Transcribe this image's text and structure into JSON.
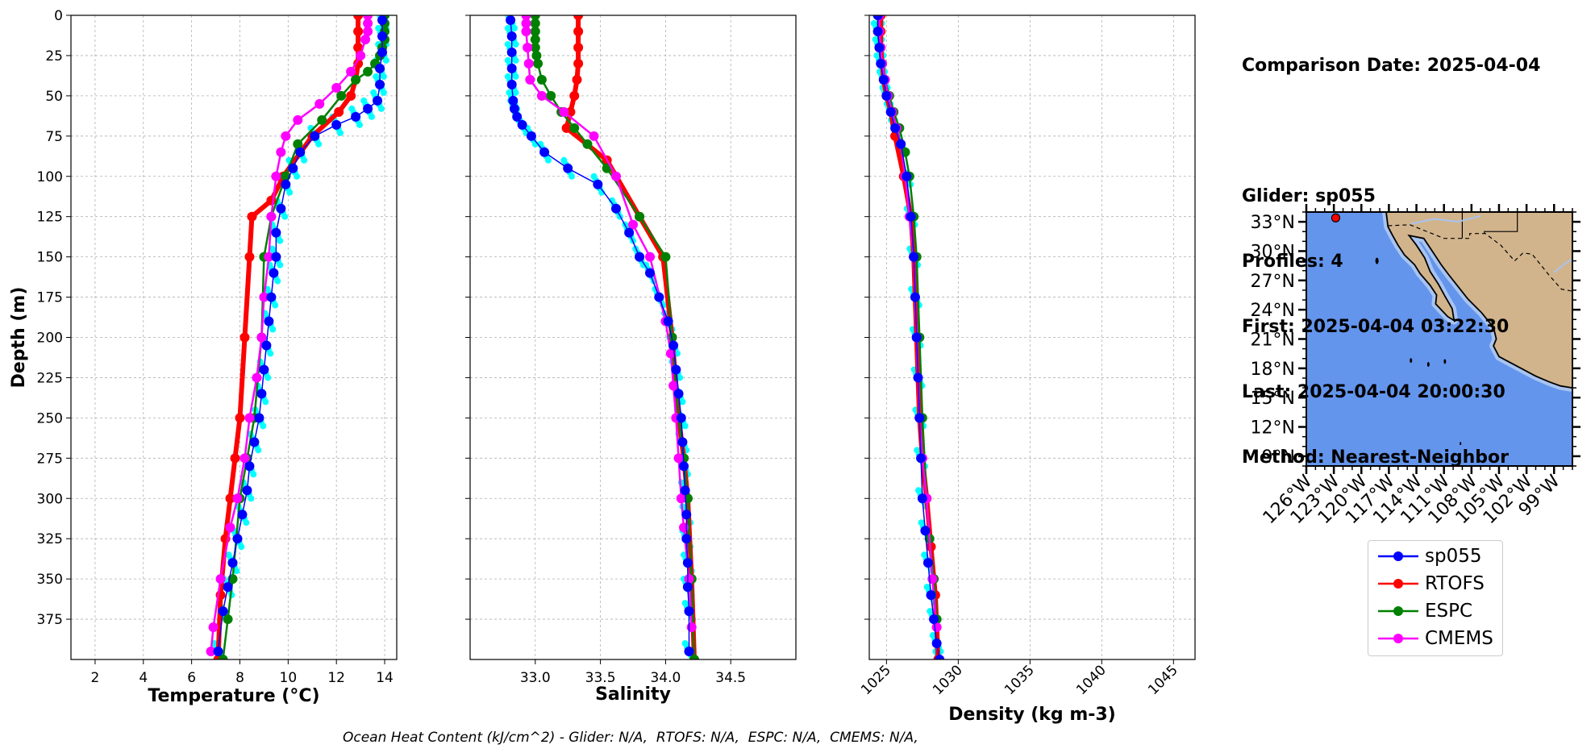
{
  "info": {
    "date_line": "Comparison Date: 2025-04-04",
    "glider_line": "Glider: sp055",
    "profiles_line": "Profiles: 4",
    "first_line": "First: 2025-04-04 03:22:30",
    "last_line": "Last: 2025-04-04 20:00:30",
    "method_line": "Method: Nearest-Neighbor"
  },
  "footer": "Ocean Heat Content (kJ/cm^2) - Glider: N/A,  RTOFS: N/A,  ESPC: N/A,  CMEMS: N/A,",
  "colors": {
    "glider": "#0000ff",
    "glider_raw": "#00ffff",
    "rtofs": "#ff0000",
    "espc": "#008000",
    "cmems": "#ff00ff",
    "ocean": "#6495ed",
    "shelf": "#a8c4f0",
    "land": "#d2b48c"
  },
  "legend": [
    {
      "key": "glider",
      "label": "sp055"
    },
    {
      "key": "rtofs",
      "label": "RTOFS"
    },
    {
      "key": "espc",
      "label": "ESPC"
    },
    {
      "key": "cmems",
      "label": "CMEMS"
    }
  ],
  "chart_data": [
    {
      "type": "line",
      "xlabel": "Temperature (°C)",
      "ylabel": "Depth (m)",
      "xlim": [
        1,
        14.5
      ],
      "ylim": [
        400,
        0
      ],
      "xticks": [
        2,
        4,
        6,
        8,
        10,
        12,
        14
      ],
      "yticks": [
        0,
        25,
        50,
        75,
        100,
        125,
        150,
        175,
        200,
        225,
        250,
        275,
        300,
        325,
        350,
        375
      ],
      "grid": true,
      "series": [
        {
          "name": "sp055",
          "x": [
            13.9,
            13.9,
            13.9,
            13.8,
            13.8,
            13.7,
            13.3,
            12.8,
            12.0,
            11.1,
            10.5,
            10.2,
            9.9,
            9.7,
            9.5,
            9.5,
            9.4,
            9.3,
            9.2,
            9.1,
            9.0,
            8.9,
            8.8,
            8.6,
            8.4,
            8.3,
            8.1,
            7.9,
            7.7,
            7.5,
            7.3,
            7.1
          ],
          "y": [
            3,
            13,
            23,
            33,
            43,
            53,
            58,
            63,
            68,
            75,
            85,
            95,
            105,
            120,
            135,
            150,
            160,
            175,
            190,
            205,
            220,
            235,
            250,
            265,
            280,
            295,
            310,
            325,
            340,
            355,
            370,
            395
          ]
        },
        {
          "name": "RTOFS",
          "x": [
            12.9,
            12.9,
            12.9,
            12.9,
            12.8,
            12.6,
            12.1,
            11.0,
            9.8,
            9.3,
            8.5,
            8.4,
            8.2,
            8.0,
            7.8,
            7.6,
            7.4,
            7.2,
            7.1
          ],
          "y": [
            0,
            10,
            20,
            30,
            40,
            50,
            60,
            75,
            100,
            115,
            125,
            150,
            200,
            250,
            275,
            300,
            325,
            360,
            400
          ]
        },
        {
          "name": "ESPC",
          "x": [
            14.0,
            14.0,
            14.0,
            14.0,
            13.9,
            13.8,
            13.6,
            13.3,
            12.8,
            12.2,
            11.4,
            10.4,
            9.9,
            9.3,
            9.0,
            8.9,
            8.6,
            8.3,
            8.0,
            7.7,
            7.5,
            7.3
          ],
          "y": [
            0,
            5,
            10,
            15,
            20,
            25,
            30,
            35,
            40,
            50,
            65,
            80,
            100,
            125,
            150,
            200,
            250,
            275,
            300,
            350,
            375,
            400
          ]
        },
        {
          "name": "CMEMS",
          "x": [
            13.3,
            13.3,
            13.3,
            13.2,
            13.0,
            12.6,
            12.0,
            11.3,
            10.4,
            9.9,
            9.7,
            9.5,
            9.3,
            9.2,
            9.0,
            8.9,
            8.7,
            8.4,
            8.2,
            7.9,
            7.6,
            7.2,
            6.9,
            6.8
          ],
          "y": [
            0,
            5,
            10,
            15,
            25,
            35,
            45,
            55,
            65,
            75,
            85,
            100,
            125,
            150,
            175,
            200,
            225,
            250,
            275,
            300,
            318,
            350,
            380,
            395
          ]
        }
      ]
    },
    {
      "type": "line",
      "xlabel": "Salinity",
      "ylabel": "",
      "xlim": [
        32.5,
        35.0
      ],
      "ylim": [
        400,
        0
      ],
      "xticks": [
        33.0,
        33.5,
        34.0,
        34.5
      ],
      "grid": true,
      "series": [
        {
          "name": "sp055",
          "x": [
            32.81,
            32.82,
            32.82,
            32.82,
            32.82,
            32.83,
            32.84,
            32.86,
            32.9,
            32.97,
            33.07,
            33.25,
            33.48,
            33.62,
            33.72,
            33.8,
            33.88,
            33.95,
            34.02,
            34.06,
            34.08,
            34.1,
            34.12,
            34.13,
            34.14,
            34.15,
            34.16,
            34.16,
            34.17,
            34.17,
            34.18,
            34.18
          ],
          "y": [
            3,
            13,
            23,
            33,
            43,
            53,
            58,
            63,
            68,
            75,
            85,
            95,
            105,
            120,
            135,
            150,
            160,
            175,
            190,
            205,
            220,
            235,
            250,
            265,
            280,
            295,
            310,
            325,
            340,
            355,
            370,
            395
          ]
        },
        {
          "name": "RTOFS",
          "x": [
            33.33,
            33.33,
            33.33,
            33.33,
            33.32,
            33.3,
            33.27,
            33.24,
            33.55,
            33.8,
            33.98,
            34.05,
            34.1,
            34.14,
            34.17,
            34.2,
            34.22
          ],
          "y": [
            0,
            10,
            20,
            30,
            40,
            50,
            60,
            70,
            90,
            125,
            150,
            200,
            250,
            275,
            300,
            350,
            400
          ]
        },
        {
          "name": "ESPC",
          "x": [
            33.0,
            33.0,
            33.0,
            33.0,
            33.0,
            33.01,
            33.02,
            33.05,
            33.12,
            33.2,
            33.3,
            33.4,
            33.55,
            33.8,
            34.0,
            34.05,
            34.1,
            34.14,
            34.17,
            34.2,
            34.22
          ],
          "y": [
            0,
            5,
            10,
            15,
            20,
            25,
            30,
            40,
            50,
            60,
            70,
            80,
            95,
            125,
            150,
            200,
            250,
            275,
            300,
            350,
            400
          ]
        },
        {
          "name": "CMEMS",
          "x": [
            32.93,
            32.93,
            32.93,
            32.94,
            32.95,
            32.96,
            33.05,
            33.22,
            33.45,
            33.62,
            33.75,
            33.88,
            34.0,
            34.04,
            34.06,
            34.08,
            34.1,
            34.12,
            34.14,
            34.18,
            34.2
          ],
          "y": [
            0,
            5,
            10,
            20,
            30,
            40,
            50,
            60,
            75,
            100,
            130,
            150,
            190,
            210,
            230,
            250,
            275,
            300,
            318,
            350,
            380
          ]
        }
      ]
    },
    {
      "type": "line",
      "xlabel": "Density (kg m-3)",
      "ylabel": "",
      "xlim": [
        1023.8,
        1046.5
      ],
      "ylim": [
        400,
        0
      ],
      "xticks": [
        1025,
        1030,
        1035,
        1040,
        1045
      ],
      "grid": true,
      "series": [
        {
          "name": "sp055",
          "x": [
            1024.4,
            1024.4,
            1024.5,
            1024.6,
            1024.8,
            1025.0,
            1025.3,
            1025.6,
            1026.0,
            1026.4,
            1026.7,
            1026.9,
            1027.0,
            1027.1,
            1027.2,
            1027.3,
            1027.4,
            1027.5,
            1027.7,
            1027.9,
            1028.1,
            1028.3,
            1028.5,
            1028.7
          ],
          "y": [
            0,
            10,
            20,
            30,
            40,
            50,
            60,
            70,
            80,
            100,
            125,
            150,
            175,
            200,
            225,
            250,
            275,
            300,
            320,
            340,
            360,
            375,
            390,
            400
          ]
        },
        {
          "name": "RTOFS",
          "x": [
            1024.6,
            1024.6,
            1024.6,
            1024.7,
            1024.8,
            1025.0,
            1025.3,
            1025.6,
            1026.2,
            1026.7,
            1026.9,
            1027.1,
            1027.3,
            1027.5,
            1027.8,
            1028.1,
            1028.4,
            1028.6
          ],
          "y": [
            0,
            10,
            20,
            30,
            40,
            50,
            60,
            75,
            100,
            125,
            150,
            200,
            250,
            275,
            300,
            330,
            360,
            400
          ]
        },
        {
          "name": "ESPC",
          "x": [
            1024.4,
            1024.4,
            1024.5,
            1024.7,
            1024.9,
            1025.2,
            1025.5,
            1025.9,
            1026.3,
            1026.6,
            1026.9,
            1027.1,
            1027.3,
            1027.5,
            1027.8,
            1028.0,
            1028.3,
            1028.5
          ],
          "y": [
            0,
            10,
            20,
            30,
            40,
            50,
            60,
            70,
            85,
            100,
            125,
            150,
            200,
            250,
            300,
            325,
            350,
            375
          ]
        },
        {
          "name": "CMEMS",
          "x": [
            1024.5,
            1024.5,
            1024.6,
            1024.7,
            1024.9,
            1025.1,
            1025.4,
            1025.7,
            1026.0,
            1026.3,
            1026.6,
            1026.9,
            1027.1,
            1027.3,
            1027.5,
            1027.8,
            1028.2,
            1028.5
          ],
          "y": [
            0,
            10,
            20,
            30,
            40,
            50,
            60,
            70,
            80,
            100,
            125,
            150,
            200,
            250,
            275,
            300,
            350,
            380
          ]
        }
      ]
    }
  ],
  "map": {
    "lat_labels": [
      "33°N",
      "30°N",
      "27°N",
      "24°N",
      "21°N",
      "18°N",
      "15°N",
      "12°N",
      "9°N"
    ],
    "lon_labels": [
      "126°W",
      "123°W",
      "120°W",
      "117°W",
      "114°W",
      "111°W",
      "108°W",
      "105°W",
      "102°W",
      "99°W"
    ],
    "lat_range": [
      8,
      34
    ],
    "lon_range": [
      -126,
      -97
    ],
    "glider_position": {
      "lon": -122.8,
      "lat": 33.4
    }
  }
}
